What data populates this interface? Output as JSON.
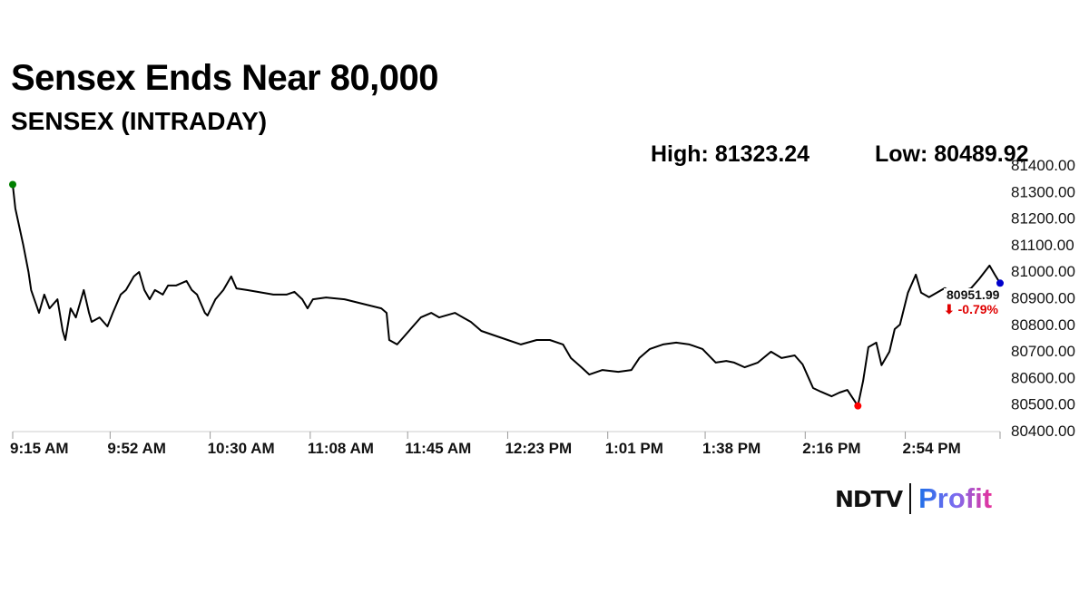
{
  "header": {
    "title": "Sensex Ends Near 80,000",
    "subtitle": "SENSEX (INTRADAY)",
    "high_label": "High: 81323.24",
    "low_label": "Low: 80489.92"
  },
  "logo": {
    "brand": "NDTV",
    "product": "Profit"
  },
  "chart_data": {
    "type": "line",
    "title": "SENSEX (INTRADAY)",
    "xlabel": "",
    "ylabel": "",
    "x_unit": "minutes since 9:15 AM",
    "x_range": [
      0,
      375
    ],
    "ylim": [
      80400,
      81400
    ],
    "y_ticks": [
      80400,
      80500,
      80600,
      80700,
      80800,
      80900,
      81000,
      81100,
      81200,
      81300,
      81400
    ],
    "y_tick_labels": [
      "80400.00",
      "80500.00",
      "80600.00",
      "80700.00",
      "80800.00",
      "80900.00",
      "81000.00",
      "81100.00",
      "81200.00",
      "81300.00",
      "81400.00"
    ],
    "x_ticks": [
      0,
      37,
      75,
      113,
      150,
      188,
      226,
      263,
      301,
      339
    ],
    "x_tick_labels": [
      "9:15 AM",
      "9:52 AM",
      "10:30 AM",
      "11:08 AM",
      "11:45 AM",
      "12:23 PM",
      "1:01 PM",
      "1:38 PM",
      "2:16 PM",
      "2:54 PM"
    ],
    "grid": false,
    "line_color": "#000000",
    "x": [
      0,
      1,
      4,
      6,
      7,
      10,
      12,
      14,
      17,
      19,
      20,
      22,
      24,
      27,
      29,
      30,
      33,
      36,
      38,
      41,
      43,
      46,
      48,
      50,
      52,
      54,
      57,
      59,
      62,
      66,
      68,
      70,
      73,
      74,
      77,
      80,
      83,
      85,
      89,
      93,
      99,
      104,
      107,
      110,
      112,
      114,
      119,
      126,
      133,
      140,
      142,
      143,
      146,
      149,
      152,
      155,
      159,
      162,
      168,
      171,
      174,
      178,
      183,
      188,
      193,
      199,
      204,
      209,
      212,
      216,
      219,
      224,
      230,
      235,
      238,
      242,
      247,
      252,
      257,
      262,
      267,
      271,
      274,
      278,
      283,
      288,
      292,
      297,
      300,
      304,
      307,
      311,
      314,
      317,
      321,
      323,
      325,
      328,
      330,
      333,
      335,
      337,
      340,
      343,
      345,
      348,
      354,
      357,
      361,
      364,
      367,
      371,
      373,
      375
    ],
    "values": [
      81323.24,
      81233,
      81096,
      80994,
      80926,
      80840,
      80909,
      80857,
      80891,
      80772,
      80738,
      80857,
      80823,
      80926,
      80840,
      80806,
      80823,
      80789,
      80840,
      80909,
      80926,
      80977,
      80994,
      80926,
      80891,
      80926,
      80909,
      80943,
      80943,
      80960,
      80926,
      80909,
      80840,
      80830,
      80891,
      80926,
      80977,
      80932,
      80926,
      80919,
      80909,
      80909,
      80919,
      80891,
      80857,
      80891,
      80898,
      80891,
      80874,
      80857,
      80840,
      80738,
      80721,
      80755,
      80789,
      80823,
      80840,
      80823,
      80840,
      80823,
      80806,
      80772,
      80755,
      80738,
      80721,
      80738,
      80738,
      80721,
      80670,
      80635,
      80608,
      80625,
      80618,
      80625,
      80670,
      80704,
      80721,
      80728,
      80721,
      80704,
      80653,
      80659,
      80653,
      80635,
      80653,
      80694,
      80670,
      80680,
      80646,
      80557,
      80543,
      80526,
      80540,
      80550,
      80489.92,
      80584,
      80711,
      80728,
      80643,
      80694,
      80779,
      80796,
      80916,
      80984,
      80916,
      80899,
      80933,
      80916,
      80923,
      80933,
      80967,
      81018,
      80984,
      80951.99
    ],
    "markers": [
      {
        "label": "open-high",
        "x": 0,
        "value": 81323.24,
        "color": "#008000"
      },
      {
        "label": "low",
        "x": 321,
        "value": 80489.92,
        "color": "#ff0000"
      },
      {
        "label": "last",
        "x": 375,
        "value": 80951.99,
        "color": "#0000cc"
      }
    ],
    "last_value_label": "80951.99",
    "change_label": "-0.79%",
    "change_arrow": "⬇",
    "change_color": "#e00000"
  }
}
